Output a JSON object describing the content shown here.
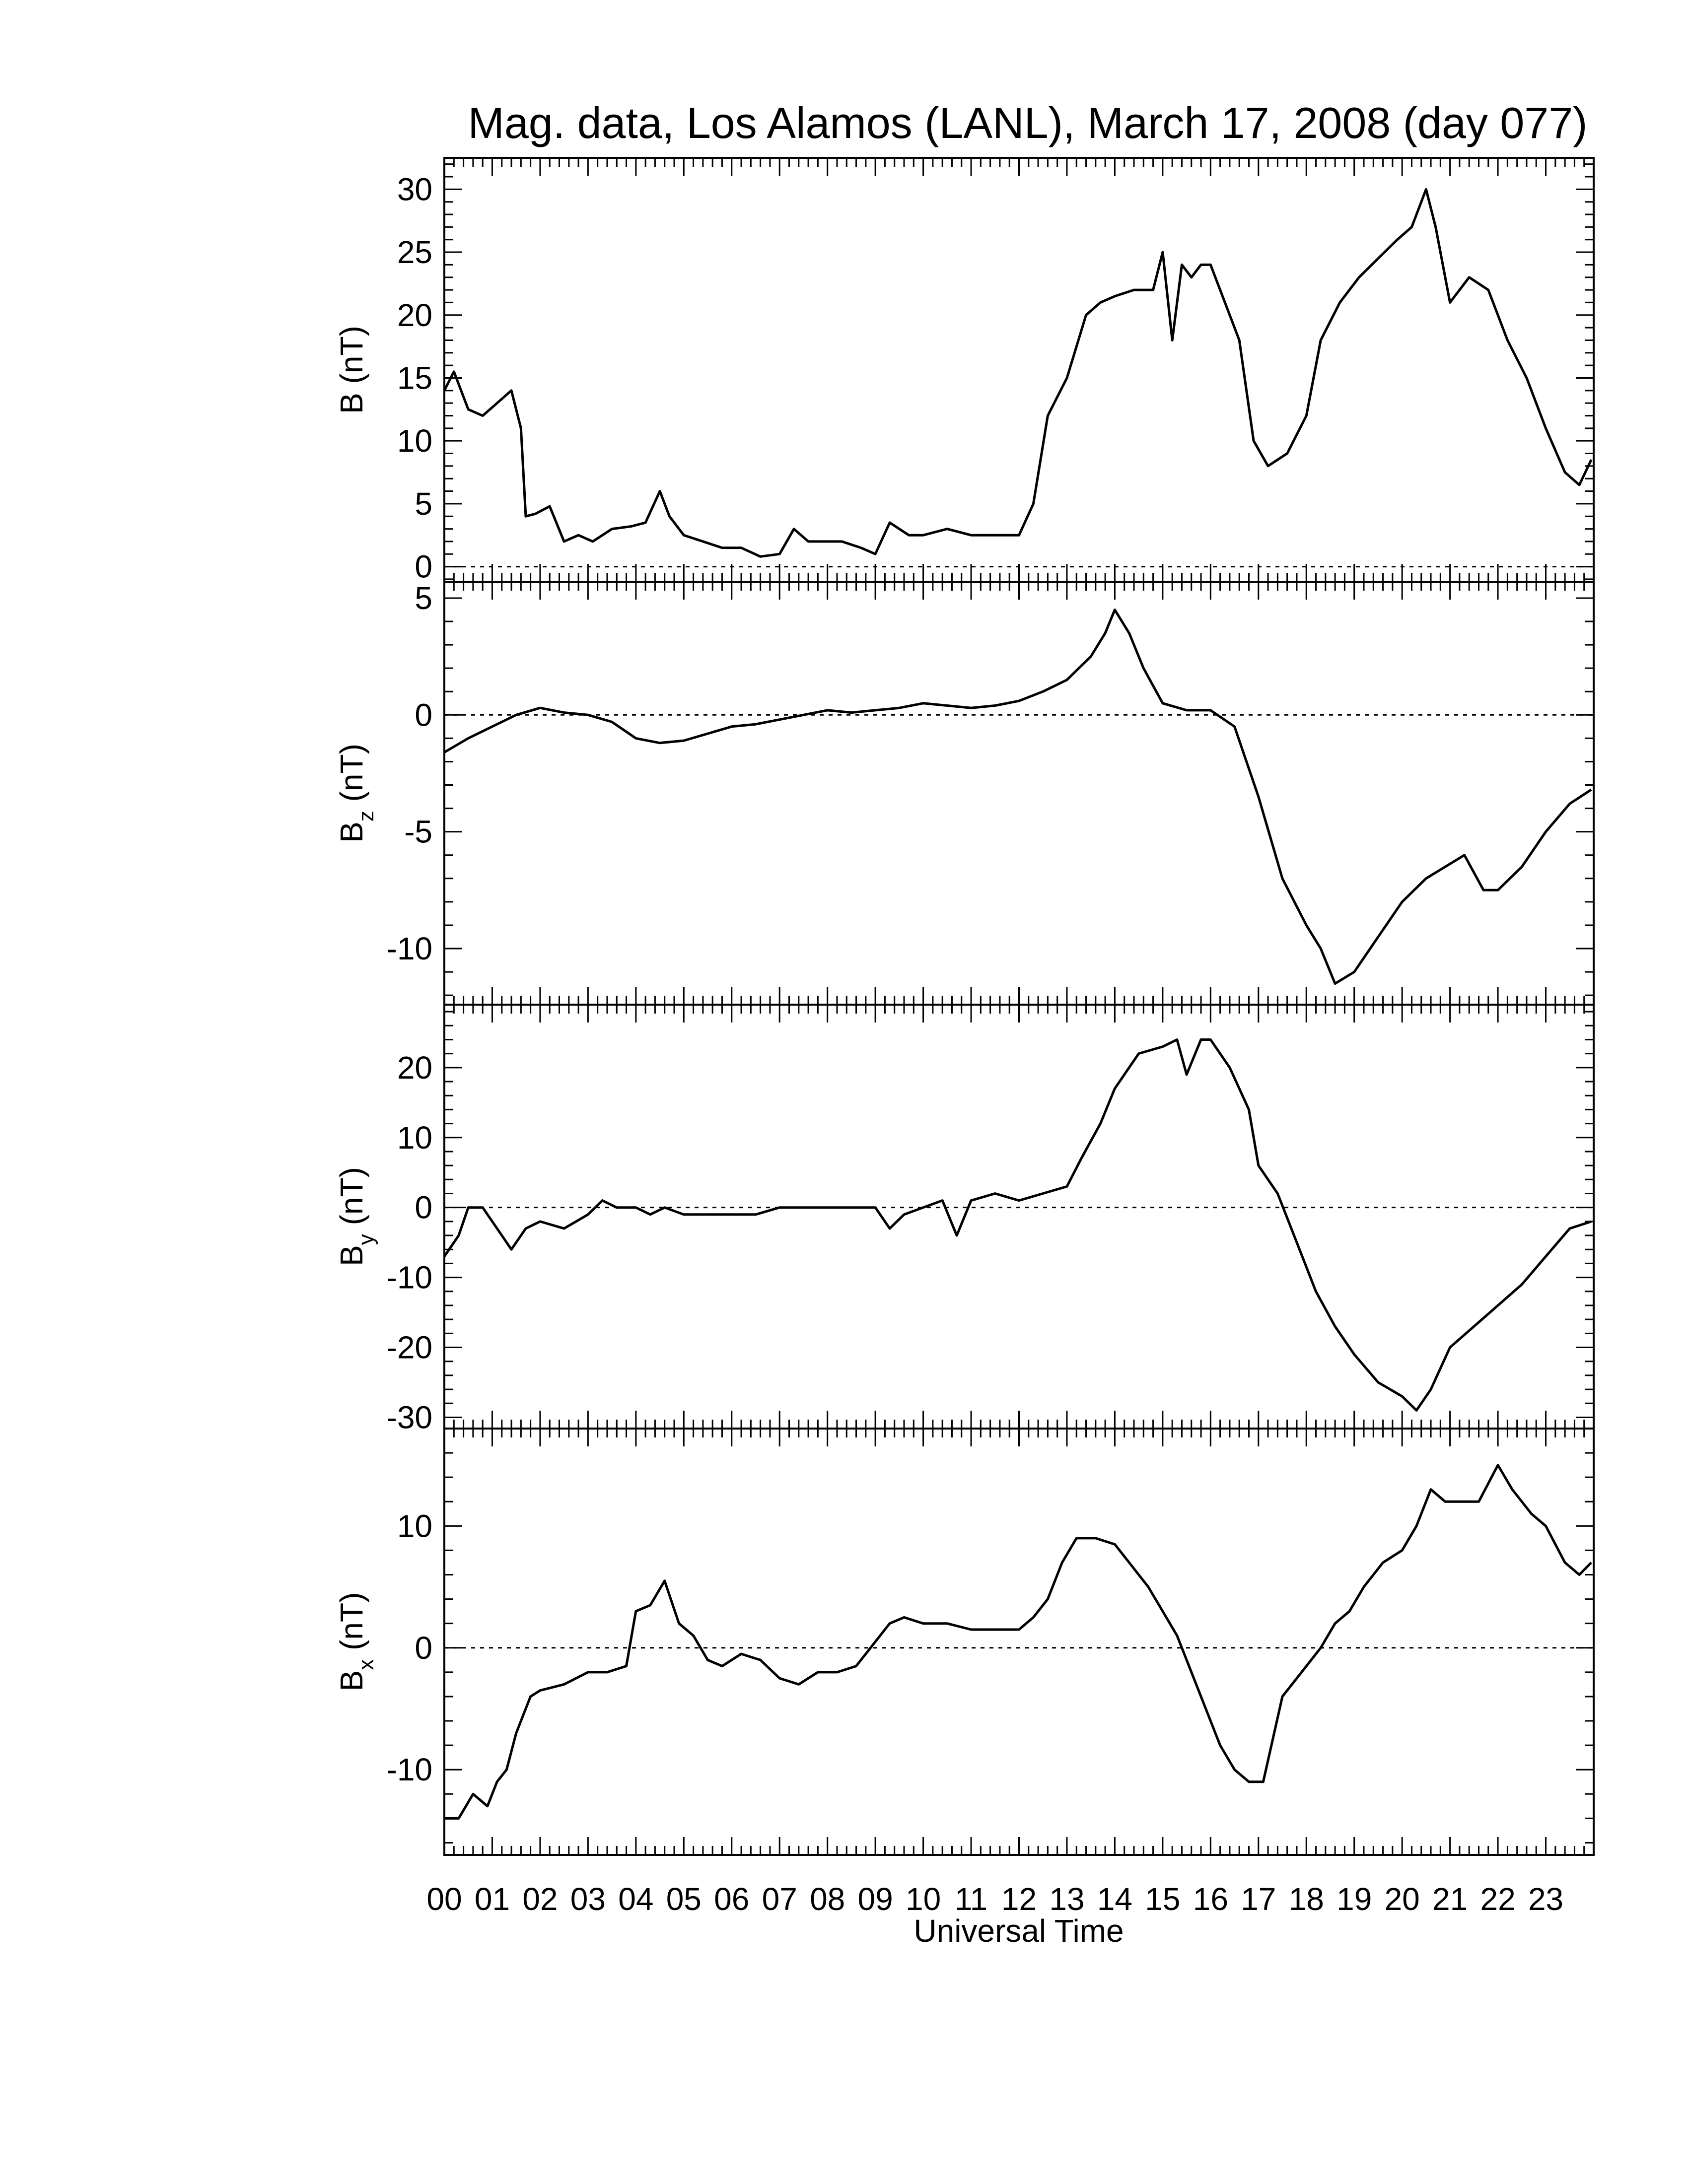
{
  "colors": {
    "line": "#000000",
    "background": "#ffffff"
  },
  "title": "Mag. data, Los Alamos (LANL), March 17, 2008 (day 077)",
  "xlabel": "Universal Time",
  "x_tick_labels": [
    "00",
    "01",
    "02",
    "03",
    "04",
    "05",
    "06",
    "07",
    "08",
    "09",
    "10",
    "11",
    "12",
    "13",
    "14",
    "15",
    "16",
    "17",
    "18",
    "19",
    "20",
    "21",
    "22",
    "23"
  ],
  "panels": [
    {
      "id": "b",
      "ylabel_main": "B",
      "ylabel_sub": "",
      "ylabel_unit": "(nT)",
      "ylim": [
        -1.2,
        32.5
      ],
      "yticks": [
        0,
        5,
        10,
        15,
        20,
        25,
        30
      ],
      "ytick_labels": [
        "0",
        "5",
        "10",
        "15",
        "20",
        "25",
        "30"
      ]
    },
    {
      "id": "bz",
      "ylabel_main": "B",
      "ylabel_sub": "z",
      "ylabel_unit": "(nT)",
      "ylim": [
        -12.4,
        5.7
      ],
      "yticks": [
        -10,
        -5,
        0,
        5
      ],
      "ytick_labels": [
        "-10",
        "-5",
        "0",
        "5"
      ]
    },
    {
      "id": "by",
      "ylabel_main": "B",
      "ylabel_sub": "y",
      "ylabel_unit": "(nT)",
      "ylim": [
        -31.6,
        29.0
      ],
      "yticks": [
        -30,
        -20,
        -10,
        0,
        10,
        20
      ],
      "ytick_labels": [
        "-30",
        "-20",
        "-10",
        "0",
        "10",
        "20"
      ]
    },
    {
      "id": "bx",
      "ylabel_main": "B",
      "ylabel_sub": "x",
      "ylabel_unit": "(nT)",
      "ylim": [
        -17.0,
        18.0
      ],
      "yticks": [
        -10,
        0,
        10
      ],
      "ytick_labels": [
        "-10",
        "0",
        "10"
      ]
    }
  ],
  "chart_data": [
    {
      "type": "line",
      "panel": "b",
      "xlabel": "Universal Time",
      "ylabel": "B (nT)",
      "xlim": [
        0,
        24
      ],
      "ylim": [
        -1.2,
        32.5
      ],
      "x": [
        0,
        0.2,
        0.5,
        0.8,
        1.1,
        1.4,
        1.6,
        1.7,
        1.9,
        2.2,
        2.5,
        2.8,
        3.1,
        3.5,
        3.9,
        4.2,
        4.5,
        4.7,
        5.0,
        5.4,
        5.8,
        6.2,
        6.6,
        7.0,
        7.3,
        7.6,
        7.9,
        8.3,
        8.7,
        9.0,
        9.3,
        9.7,
        10.0,
        10.5,
        11.0,
        11.5,
        12.0,
        12.3,
        12.6,
        13.0,
        13.4,
        13.7,
        14.0,
        14.4,
        14.8,
        15.0,
        15.2,
        15.4,
        15.6,
        15.8,
        16.0,
        16.3,
        16.6,
        16.9,
        17.2,
        17.6,
        18.0,
        18.3,
        18.7,
        19.1,
        19.5,
        19.9,
        20.2,
        20.5,
        20.7,
        21.0,
        21.4,
        21.8,
        22.2,
        22.6,
        23.0,
        23.4,
        23.7,
        23.95
      ],
      "y": [
        14,
        15.5,
        12.5,
        12,
        13,
        14,
        11,
        4,
        4.2,
        4.8,
        2,
        2.5,
        2,
        3,
        3.2,
        3.5,
        6,
        4,
        2.5,
        2,
        1.5,
        1.5,
        0.8,
        1,
        3,
        2,
        2,
        2,
        1.5,
        1,
        3.5,
        2.5,
        2.5,
        3,
        2.5,
        2.5,
        2.5,
        5,
        12,
        15,
        20,
        21,
        21.5,
        22,
        22,
        25,
        18,
        24,
        23,
        24,
        24,
        21,
        18,
        10,
        8,
        9,
        12,
        18,
        21,
        23,
        24.5,
        26,
        27,
        30,
        27,
        21,
        23,
        22,
        18,
        15,
        11,
        7.5,
        6.5,
        8.5
      ]
    },
    {
      "type": "line",
      "panel": "bz",
      "xlabel": "Universal Time",
      "ylabel": "Bz (nT)",
      "xlim": [
        0,
        24
      ],
      "ylim": [
        -12.4,
        5.7
      ],
      "x": [
        0,
        0.5,
        1,
        1.5,
        2,
        2.5,
        3,
        3.5,
        4,
        4.5,
        5,
        5.5,
        6,
        6.5,
        7,
        7.5,
        8,
        8.5,
        9,
        9.5,
        10,
        10.5,
        11,
        11.5,
        12,
        12.5,
        13,
        13.5,
        13.8,
        14.0,
        14.3,
        14.6,
        15.0,
        15.5,
        16.0,
        16.5,
        17.0,
        17.5,
        18.0,
        18.3,
        18.6,
        19.0,
        19.5,
        20.0,
        20.5,
        20.9,
        21.3,
        21.7,
        22.0,
        22.5,
        23.0,
        23.5,
        23.95
      ],
      "y": [
        -1.6,
        -1.0,
        -0.5,
        0,
        0.3,
        0.1,
        0,
        -0.3,
        -1.0,
        -1.2,
        -1.1,
        -0.8,
        -0.5,
        -0.4,
        -0.2,
        0,
        0.2,
        0.1,
        0.2,
        0.3,
        0.5,
        0.4,
        0.3,
        0.4,
        0.6,
        1.0,
        1.5,
        2.5,
        3.5,
        4.5,
        3.5,
        2.0,
        0.5,
        0.2,
        0.2,
        -0.5,
        -3.5,
        -7.0,
        -9.0,
        -10.0,
        -11.5,
        -11.0,
        -9.5,
        -8.0,
        -7.0,
        -6.5,
        -6.0,
        -7.5,
        -7.5,
        -6.5,
        -5.0,
        -3.8,
        -3.2
      ]
    },
    {
      "type": "line",
      "panel": "by",
      "xlabel": "Universal Time",
      "ylabel": "By (nT)",
      "xlim": [
        0,
        24
      ],
      "ylim": [
        -31.6,
        29.0
      ],
      "x": [
        0,
        0.3,
        0.5,
        0.8,
        1.0,
        1.2,
        1.4,
        1.7,
        2.0,
        2.5,
        3.0,
        3.3,
        3.6,
        4.0,
        4.3,
        4.6,
        5.0,
        5.5,
        6.0,
        6.5,
        7.0,
        7.5,
        8.0,
        8.5,
        9.0,
        9.3,
        9.6,
        10.0,
        10.4,
        10.7,
        11.0,
        11.5,
        12.0,
        12.5,
        13.0,
        13.3,
        13.7,
        14.0,
        14.5,
        15.0,
        15.3,
        15.5,
        15.8,
        16.0,
        16.4,
        16.8,
        17.0,
        17.4,
        17.8,
        18.2,
        18.6,
        19.0,
        19.5,
        20.0,
        20.3,
        20.6,
        21.0,
        21.5,
        22.0,
        22.5,
        23.0,
        23.5,
        23.95
      ],
      "y": [
        -7,
        -4,
        0,
        0,
        -2,
        -4,
        -6,
        -3,
        -2,
        -3,
        -1,
        1,
        0,
        0,
        -1,
        0,
        -1,
        -1,
        -1,
        -1,
        0,
        0,
        0,
        0,
        0,
        -3,
        -1,
        0,
        1,
        -4,
        1,
        2,
        1,
        2,
        3,
        7,
        12,
        17,
        22,
        23,
        24,
        19,
        24,
        24,
        20,
        14,
        6,
        2,
        -5,
        -12,
        -17,
        -21,
        -25,
        -27,
        -29,
        -26,
        -20,
        -17,
        -14,
        -11,
        -7,
        -3,
        -2
      ]
    },
    {
      "type": "line",
      "panel": "bx",
      "xlabel": "Universal Time",
      "ylabel": "Bx (nT)",
      "xlim": [
        0,
        24
      ],
      "ylim": [
        -17.0,
        18.0
      ],
      "x": [
        0,
        0.3,
        0.6,
        0.9,
        1.1,
        1.3,
        1.5,
        1.8,
        2.0,
        2.5,
        3.0,
        3.4,
        3.8,
        4.0,
        4.3,
        4.6,
        4.9,
        5.2,
        5.5,
        5.8,
        6.2,
        6.6,
        7.0,
        7.4,
        7.8,
        8.2,
        8.6,
        9.0,
        9.3,
        9.6,
        10.0,
        10.5,
        11.0,
        11.5,
        12.0,
        12.3,
        12.6,
        12.9,
        13.2,
        13.6,
        14.0,
        14.3,
        14.7,
        15.0,
        15.3,
        15.6,
        15.9,
        16.2,
        16.5,
        16.8,
        17.1,
        17.5,
        17.9,
        18.3,
        18.6,
        18.9,
        19.2,
        19.6,
        20.0,
        20.3,
        20.6,
        20.9,
        21.2,
        21.6,
        22.0,
        22.3,
        22.7,
        23.0,
        23.4,
        23.7,
        23.95
      ],
      "y": [
        -14,
        -14,
        -12,
        -13,
        -11,
        -10,
        -7,
        -4,
        -3.5,
        -3,
        -2,
        -2,
        -1.5,
        3,
        3.5,
        5.5,
        2,
        1,
        -1,
        -1.5,
        -0.5,
        -1,
        -2.5,
        -3,
        -2,
        -2,
        -1.5,
        0.5,
        2,
        2.5,
        2,
        2,
        1.5,
        1.5,
        1.5,
        2.5,
        4,
        7,
        9,
        9,
        8.5,
        7,
        5,
        3,
        1,
        -2,
        -5,
        -8,
        -10,
        -11,
        -11,
        -4,
        -2,
        0,
        2,
        3,
        5,
        7,
        8,
        10,
        13,
        12,
        12,
        12,
        15,
        13,
        11,
        10,
        7,
        6,
        7
      ]
    }
  ]
}
